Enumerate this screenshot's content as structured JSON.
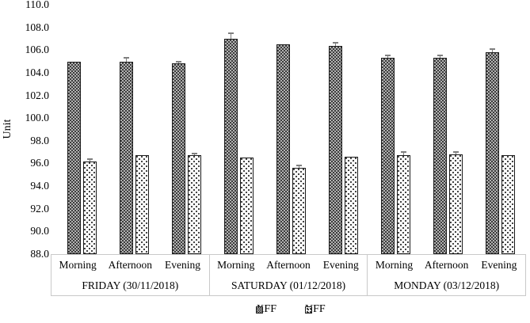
{
  "chart_data": {
    "type": "bar",
    "title": "",
    "ylabel": "Unit",
    "ylim": [
      88,
      110
    ],
    "ytick_step": 2,
    "ytick_labels": [
      "110.0",
      "108.0",
      "106.0",
      "104.0",
      "102.0",
      "100.0",
      "98.0",
      "96.0",
      "94.0",
      "92.0",
      "90.0",
      "88.0"
    ],
    "grid": false,
    "legend_position": "bottom-center",
    "categories": [
      "Morning",
      "Afternoon",
      "Evening"
    ],
    "groups": [
      {
        "label": "FRIDAY (30/11/2018)"
      },
      {
        "label": "SATURDAY (01/12/2018)"
      },
      {
        "label": "MONDAY (03/12/2018)"
      }
    ],
    "series": [
      {
        "name": "XFF",
        "pattern": "dark-checkerboard",
        "values": [
          [
            105.0,
            105.0,
            104.8
          ],
          [
            107.0,
            106.5,
            106.4
          ],
          [
            105.3,
            105.3,
            105.8
          ]
        ],
        "errors": [
          [
            0,
            0.3,
            0.15
          ],
          [
            0.5,
            0,
            0.25
          ],
          [
            0.2,
            0.2,
            0.3
          ]
        ]
      },
      {
        "name": "YFF",
        "pattern": "light-dotted",
        "values": [
          [
            96.2,
            96.7,
            96.7
          ],
          [
            96.5,
            95.6,
            96.6
          ],
          [
            96.7,
            96.8,
            96.7
          ]
        ],
        "errors": [
          [
            0.15,
            0,
            0.15
          ],
          [
            0,
            0.25,
            0
          ],
          [
            0.3,
            0.2,
            0
          ]
        ]
      }
    ]
  }
}
